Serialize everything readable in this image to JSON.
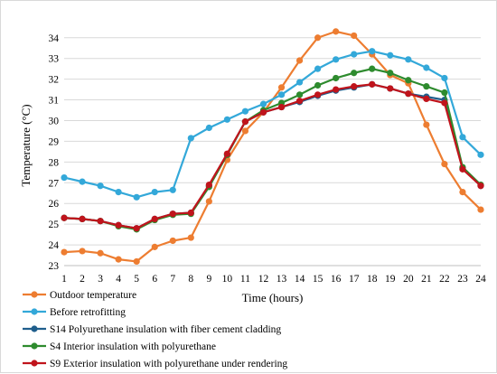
{
  "chart_data": {
    "type": "line",
    "title": "",
    "xlabel": "Time (hours)",
    "ylabel": "Temperature (°C)",
    "x": [
      1,
      2,
      3,
      4,
      5,
      6,
      7,
      8,
      9,
      10,
      11,
      12,
      13,
      14,
      15,
      16,
      17,
      18,
      19,
      20,
      21,
      22,
      23,
      24
    ],
    "x_ticks": [
      "1",
      "2",
      "3",
      "4",
      "5",
      "6",
      "7",
      "8",
      "9",
      "10",
      "11",
      "12",
      "13",
      "14",
      "15",
      "16",
      "17",
      "18",
      "19",
      "20",
      "21",
      "22",
      "23",
      "24"
    ],
    "ylim": [
      23,
      34.6
    ],
    "y_ticks": [
      "23",
      "24",
      "25",
      "26",
      "27",
      "28",
      "29",
      "30",
      "31",
      "32",
      "33",
      "34"
    ],
    "grid": true,
    "legend_position": "bottom",
    "series": [
      {
        "name": "Outdoor temperature",
        "color": "#ed7d31",
        "values": [
          23.65,
          23.7,
          23.6,
          23.3,
          23.2,
          23.9,
          24.2,
          24.35,
          26.1,
          28.1,
          29.5,
          30.4,
          31.6,
          32.9,
          34.0,
          34.3,
          34.1,
          33.2,
          32.2,
          31.8,
          29.8,
          27.9,
          26.55,
          25.7
        ]
      },
      {
        "name": "Before retrofitting",
        "color": "#33a8d9",
        "values": [
          27.25,
          27.05,
          26.85,
          26.55,
          26.3,
          26.55,
          26.65,
          29.15,
          29.65,
          30.05,
          30.45,
          30.8,
          31.25,
          31.85,
          32.5,
          32.95,
          33.2,
          33.35,
          33.15,
          32.95,
          32.55,
          32.05,
          29.2,
          28.35
        ]
      },
      {
        "name": "S14 Polyurethane insulation with fiber cement cladding",
        "color": "#1f5e8c",
        "values": [
          25.3,
          25.25,
          25.15,
          24.95,
          24.8,
          25.25,
          25.5,
          25.55,
          26.85,
          28.35,
          29.95,
          30.4,
          30.65,
          30.9,
          31.2,
          31.45,
          31.6,
          31.75,
          31.55,
          31.3,
          31.15,
          31.0,
          27.7,
          26.85
        ]
      },
      {
        "name": "S4 Interior insulation with polyurethane",
        "color": "#2e8b2e",
        "values": [
          25.3,
          25.25,
          25.15,
          24.9,
          24.75,
          25.2,
          25.45,
          25.5,
          26.8,
          28.35,
          29.95,
          30.5,
          30.85,
          31.25,
          31.7,
          32.05,
          32.3,
          32.5,
          32.3,
          31.95,
          31.65,
          31.35,
          27.75,
          26.9
        ]
      },
      {
        "name": "S9 Exterior insulation with polyurethane under rendering",
        "color": "#c0141c",
        "values": [
          25.3,
          25.25,
          25.15,
          24.95,
          24.8,
          25.25,
          25.5,
          25.55,
          26.9,
          28.4,
          29.95,
          30.4,
          30.65,
          30.95,
          31.25,
          31.5,
          31.65,
          31.75,
          31.55,
          31.3,
          31.05,
          30.85,
          27.65,
          26.85
        ]
      }
    ]
  }
}
